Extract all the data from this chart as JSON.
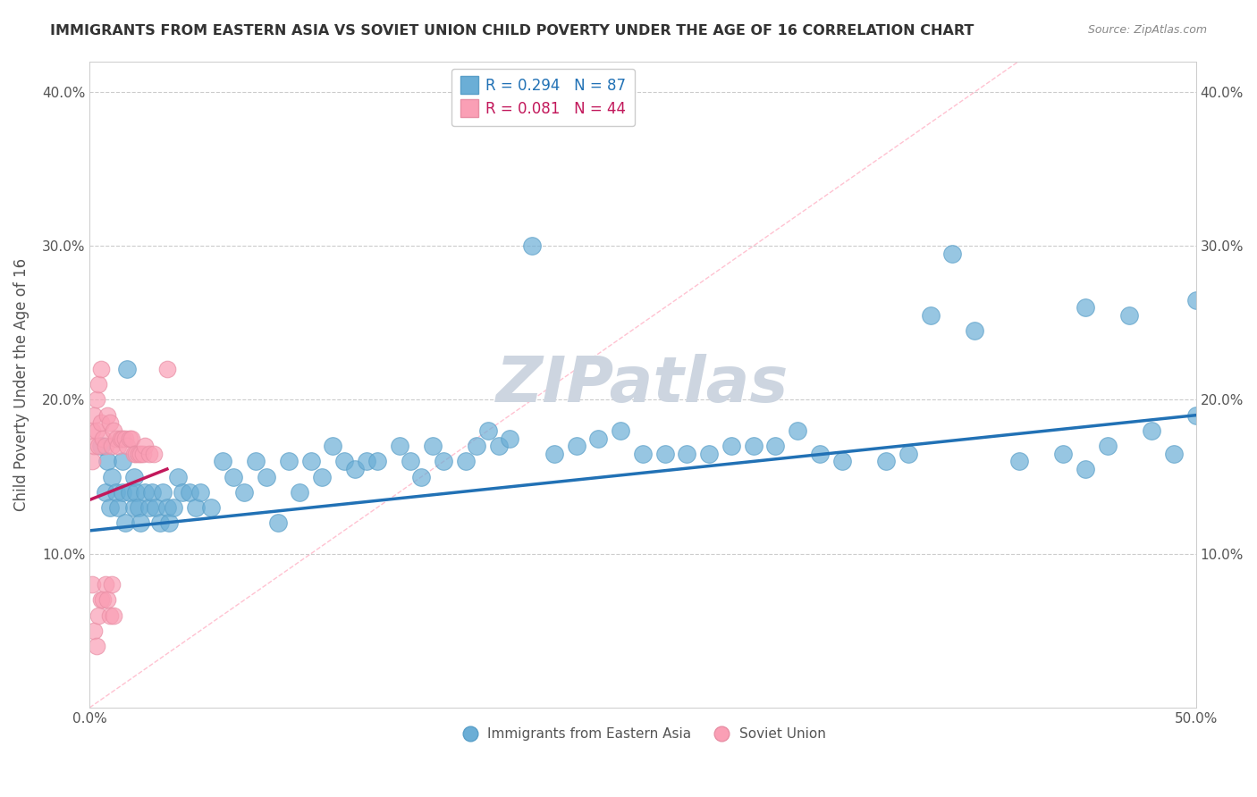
{
  "title": "IMMIGRANTS FROM EASTERN ASIA VS SOVIET UNION CHILD POVERTY UNDER THE AGE OF 16 CORRELATION CHART",
  "source": "Source: ZipAtlas.com",
  "ylabel": "Child Poverty Under the Age of 16",
  "xlim": [
    0.0,
    0.5
  ],
  "ylim": [
    0.0,
    0.42
  ],
  "blue_color": "#6baed6",
  "pink_color": "#fa9fb5",
  "blue_edge_color": "#5a9fc8",
  "pink_edge_color": "#e88fa5",
  "blue_line_color": "#2171b5",
  "pink_line_color": "#c2185b",
  "diag_line_color": "#ffb3c6",
  "grid_color": "#cccccc",
  "watermark_color": "#cdd5e0",
  "legend_R1": "R = 0.294",
  "legend_N1": "N = 87",
  "legend_R2": "R = 0.081",
  "legend_N2": "N = 44",
  "legend_label1": "Immigrants from Eastern Asia",
  "legend_label2": "Soviet Union",
  "blue_scatter_x": [
    0.005,
    0.007,
    0.008,
    0.009,
    0.01,
    0.012,
    0.013,
    0.015,
    0.015,
    0.016,
    0.017,
    0.018,
    0.02,
    0.02,
    0.021,
    0.022,
    0.023,
    0.025,
    0.027,
    0.028,
    0.03,
    0.032,
    0.033,
    0.035,
    0.036,
    0.038,
    0.04,
    0.042,
    0.045,
    0.048,
    0.05,
    0.055,
    0.06,
    0.065,
    0.07,
    0.075,
    0.08,
    0.085,
    0.09,
    0.095,
    0.1,
    0.105,
    0.11,
    0.115,
    0.12,
    0.125,
    0.13,
    0.14,
    0.145,
    0.15,
    0.155,
    0.16,
    0.17,
    0.175,
    0.18,
    0.185,
    0.19,
    0.2,
    0.21,
    0.22,
    0.23,
    0.24,
    0.25,
    0.26,
    0.27,
    0.28,
    0.29,
    0.3,
    0.31,
    0.32,
    0.33,
    0.34,
    0.36,
    0.37,
    0.38,
    0.39,
    0.4,
    0.42,
    0.44,
    0.45,
    0.46,
    0.47,
    0.48,
    0.49,
    0.5,
    0.5,
    0.45
  ],
  "blue_scatter_y": [
    0.17,
    0.14,
    0.16,
    0.13,
    0.15,
    0.14,
    0.13,
    0.14,
    0.16,
    0.12,
    0.22,
    0.14,
    0.13,
    0.15,
    0.14,
    0.13,
    0.12,
    0.14,
    0.13,
    0.14,
    0.13,
    0.12,
    0.14,
    0.13,
    0.12,
    0.13,
    0.15,
    0.14,
    0.14,
    0.13,
    0.14,
    0.13,
    0.16,
    0.15,
    0.14,
    0.16,
    0.15,
    0.12,
    0.16,
    0.14,
    0.16,
    0.15,
    0.17,
    0.16,
    0.155,
    0.16,
    0.16,
    0.17,
    0.16,
    0.15,
    0.17,
    0.16,
    0.16,
    0.17,
    0.18,
    0.17,
    0.175,
    0.3,
    0.165,
    0.17,
    0.175,
    0.18,
    0.165,
    0.165,
    0.165,
    0.165,
    0.17,
    0.17,
    0.17,
    0.18,
    0.165,
    0.16,
    0.16,
    0.165,
    0.255,
    0.295,
    0.245,
    0.16,
    0.165,
    0.26,
    0.17,
    0.255,
    0.18,
    0.165,
    0.265,
    0.19,
    0.155
  ],
  "pink_scatter_x": [
    0.001,
    0.001,
    0.001,
    0.002,
    0.002,
    0.002,
    0.003,
    0.003,
    0.003,
    0.004,
    0.004,
    0.004,
    0.005,
    0.005,
    0.005,
    0.006,
    0.006,
    0.007,
    0.007,
    0.008,
    0.008,
    0.009,
    0.009,
    0.01,
    0.01,
    0.011,
    0.011,
    0.012,
    0.013,
    0.014,
    0.015,
    0.016,
    0.017,
    0.018,
    0.019,
    0.02,
    0.021,
    0.022,
    0.023,
    0.024,
    0.025,
    0.027,
    0.029,
    0.035
  ],
  "pink_scatter_y": [
    0.18,
    0.16,
    0.08,
    0.19,
    0.17,
    0.05,
    0.2,
    0.18,
    0.04,
    0.21,
    0.17,
    0.06,
    0.22,
    0.185,
    0.07,
    0.175,
    0.07,
    0.17,
    0.08,
    0.19,
    0.07,
    0.185,
    0.06,
    0.17,
    0.08,
    0.18,
    0.06,
    0.175,
    0.17,
    0.175,
    0.175,
    0.175,
    0.17,
    0.175,
    0.175,
    0.165,
    0.165,
    0.165,
    0.165,
    0.165,
    0.17,
    0.165,
    0.165,
    0.22
  ],
  "blue_trend_x": [
    0.0,
    0.5
  ],
  "blue_trend_y": [
    0.115,
    0.19
  ],
  "pink_trend_x": [
    0.0,
    0.035
  ],
  "pink_trend_y": [
    0.135,
    0.155
  ],
  "diag_line_x": [
    0.0,
    0.42
  ],
  "diag_line_y": [
    0.0,
    0.42
  ],
  "xtick_positions": [
    0.0,
    0.05,
    0.1,
    0.15,
    0.2,
    0.25,
    0.3,
    0.35,
    0.4,
    0.45,
    0.5
  ],
  "xtick_labels": [
    "0.0%",
    "",
    "",
    "",
    "",
    "",
    "",
    "",
    "",
    "",
    "50.0%"
  ],
  "ytick_positions": [
    0.0,
    0.1,
    0.2,
    0.3,
    0.4
  ],
  "ytick_labels": [
    "",
    "10.0%",
    "20.0%",
    "30.0%",
    "40.0%"
  ]
}
